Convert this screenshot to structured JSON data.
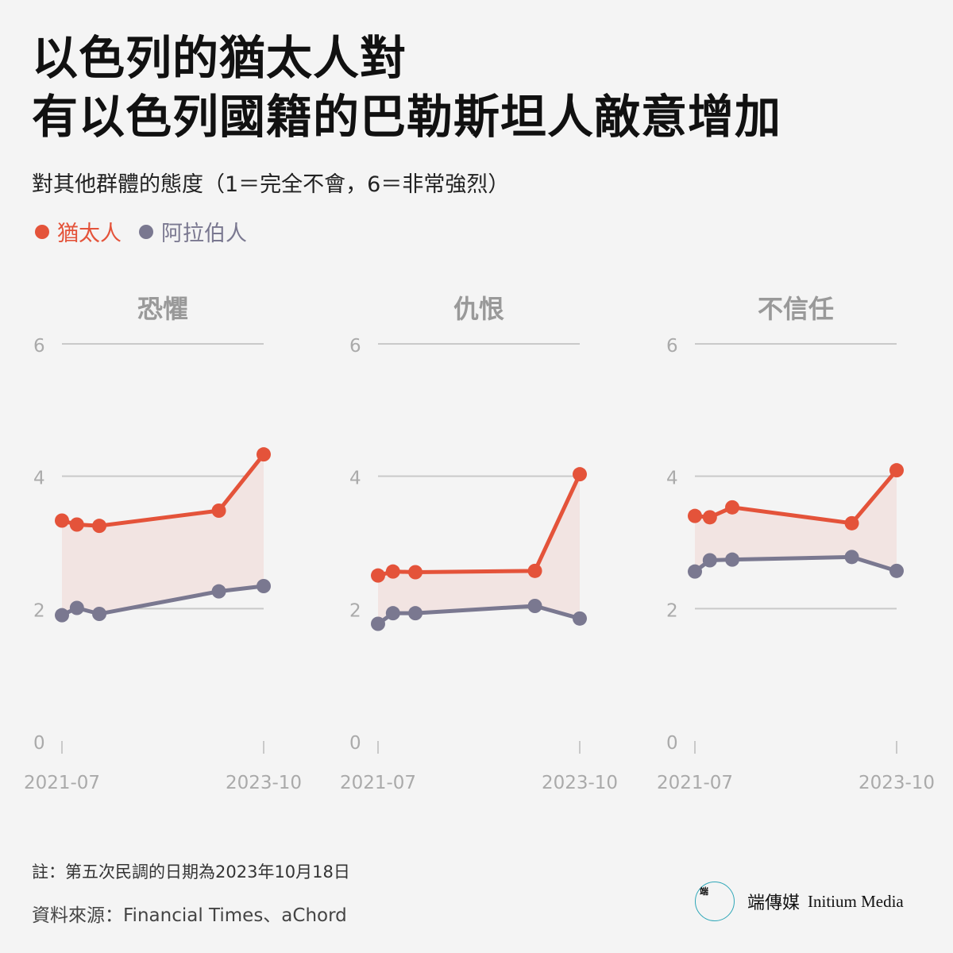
{
  "title_lines": [
    "以色列的猶太人對",
    "有以色列國籍的巴勒斯坦人敵意增加"
  ],
  "subtitle": "對其他群體的態度（1＝完全不會，6＝非常強烈）",
  "legend": [
    {
      "label": "猶太人",
      "color": "#e4533a"
    },
    {
      "label": "阿拉伯人",
      "color": "#7a7890"
    }
  ],
  "colors": {
    "jewish": "#e4533a",
    "arab": "#7a7890",
    "band": "#f2e4e2",
    "grid": "#c9c9c9",
    "axis_text": "#aaaaaa",
    "panel_title": "#999999"
  },
  "chart_data": [
    {
      "type": "line",
      "title": "恐懼",
      "ylim": [
        0,
        6
      ],
      "yticks": [
        0,
        2,
        4,
        6
      ],
      "xlim": [
        "2021-07",
        "2023-10"
      ],
      "xticks": [
        "2021-07",
        "2023-10"
      ],
      "grid": true,
      "x": [
        "2021-07",
        "2021-09",
        "2021-12",
        "2023-04",
        "2023-10"
      ],
      "series": [
        {
          "name": "猶太人",
          "values": [
            3.33,
            3.27,
            3.25,
            3.48,
            4.33
          ]
        },
        {
          "name": "阿拉伯人",
          "values": [
            1.9,
            2.01,
            1.92,
            2.26,
            2.34
          ]
        }
      ]
    },
    {
      "type": "line",
      "title": "仇恨",
      "ylim": [
        0,
        6
      ],
      "yticks": [
        0,
        2,
        4,
        6
      ],
      "xlim": [
        "2021-07",
        "2023-10"
      ],
      "xticks": [
        "2021-07",
        "2023-10"
      ],
      "grid": true,
      "x": [
        "2021-07",
        "2021-09",
        "2021-12",
        "2023-04",
        "2023-10"
      ],
      "series": [
        {
          "name": "猶太人",
          "values": [
            2.5,
            2.56,
            2.55,
            2.57,
            4.03
          ]
        },
        {
          "name": "阿拉伯人",
          "values": [
            1.77,
            1.93,
            1.93,
            2.04,
            1.85
          ]
        }
      ]
    },
    {
      "type": "line",
      "title": "不信任",
      "ylim": [
        0,
        6
      ],
      "yticks": [
        0,
        2,
        4,
        6
      ],
      "xlim": [
        "2021-07",
        "2023-10"
      ],
      "xticks": [
        "2021-07",
        "2023-10"
      ],
      "grid": true,
      "x": [
        "2021-07",
        "2021-09",
        "2021-12",
        "2023-04",
        "2023-10"
      ],
      "series": [
        {
          "name": "猶太人",
          "values": [
            3.4,
            3.38,
            3.53,
            3.29,
            4.09
          ]
        },
        {
          "name": "阿拉伯人",
          "values": [
            2.56,
            2.73,
            2.74,
            2.78,
            2.57
          ]
        }
      ]
    }
  ],
  "note": "註：第五次民調的日期為2023年10月18日",
  "source": "資料來源：Financial Times、aChord",
  "brand": {
    "name": "端傳媒",
    "name_en": "Initium Media",
    "logo_text": "端"
  }
}
